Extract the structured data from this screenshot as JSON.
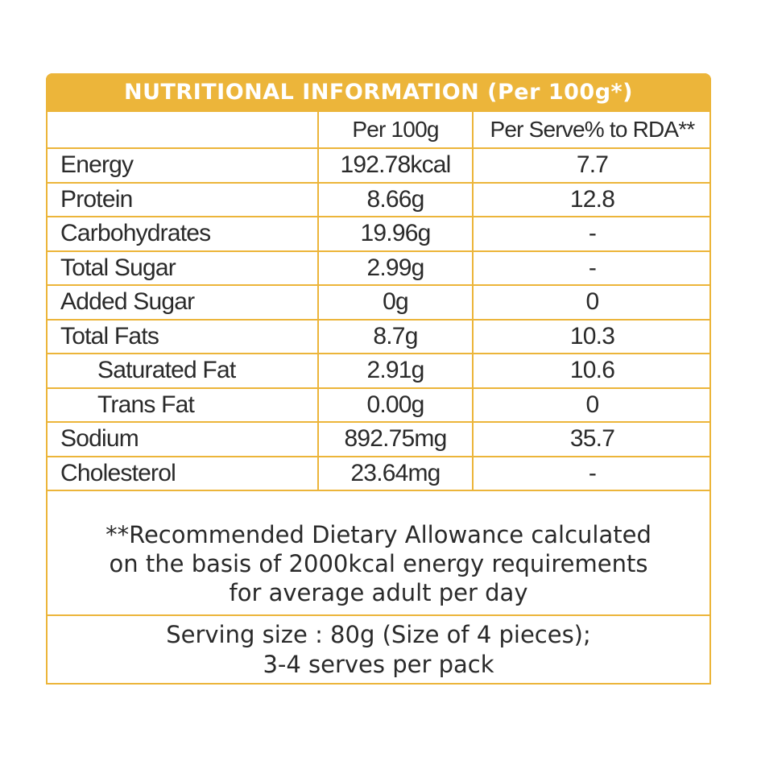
{
  "title": "NUTRITIONAL INFORMATION (Per 100g*)",
  "columns": {
    "name": "",
    "per_100g": "Per 100g",
    "per_serve_rda": "Per Serve% to RDA**"
  },
  "rows": [
    {
      "name": "Energy",
      "per_100g": "192.78kcal",
      "rda": "7.7"
    },
    {
      "name": "Protein",
      "per_100g": "8.66g",
      "rda": "12.8"
    },
    {
      "name": "Carbohydrates",
      "per_100g": "19.96g",
      "rda": "-"
    },
    {
      "name": "Total Sugar",
      "per_100g": "2.99g",
      "rda": "-"
    },
    {
      "name": "Added Sugar",
      "per_100g": "0g",
      "rda": "0"
    },
    {
      "name": "Total Fats",
      "per_100g": "8.7g",
      "rda": "10.3"
    },
    {
      "name": "Saturated Fat",
      "per_100g": "2.91g",
      "rda": "10.6"
    },
    {
      "name": "Trans Fat",
      "per_100g": "0.00g",
      "rda": "0"
    },
    {
      "name": "Sodium",
      "per_100g": "892.75mg",
      "rda": "35.7"
    },
    {
      "name": "Cholesterol",
      "per_100g": "23.64mg",
      "rda": "-"
    }
  ],
  "note": {
    "line1": "**Recommended Dietary Allowance calculated",
    "line2": "on the basis of 2000kcal energy requirements",
    "line3": "for average adult per day"
  },
  "serving": {
    "line1": "Serving size : 80g (Size of 4 pieces);",
    "line2": "3-4 serves per pack"
  },
  "colors": {
    "accent": "#ecb53a",
    "text": "#2a2a2a",
    "title_text": "#ffffff"
  }
}
